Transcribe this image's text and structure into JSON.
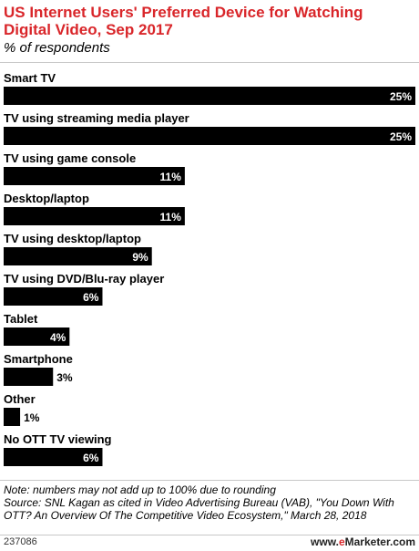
{
  "chart_data": {
    "type": "bar",
    "orientation": "horizontal",
    "title": "US Internet Users' Preferred Device for Watching Digital Video, Sep 2017",
    "subtitle": "% of respondents",
    "categories": [
      "Smart TV",
      "TV using streaming media player",
      "TV using game console",
      "Desktop/laptop",
      "TV using desktop/laptop",
      "TV using DVD/Blu-ray player",
      "Tablet",
      "Smartphone",
      "Other",
      "No OTT TV viewing"
    ],
    "values": [
      25,
      25,
      11,
      11,
      9,
      6,
      4,
      3,
      1,
      6
    ],
    "value_labels": [
      "25%",
      "25%",
      "11%",
      "11%",
      "9%",
      "6%",
      "4%",
      "3%",
      "1%",
      "6%"
    ],
    "xlim": [
      0,
      25
    ],
    "grid": false,
    "legend": "none",
    "bar_color": "#000000"
  },
  "notes": {
    "note": "Note: numbers may not add up to 100% due to rounding",
    "source": "Source: SNL Kagan as cited in Video Advertising Bureau (VAB), \"You Down With OTT? An Overview Of The Competitive Video Ecosystem,\" March 28, 2018"
  },
  "footer": {
    "chart_id": "237086",
    "brand_prefix": "www.",
    "brand_e": "e",
    "brand_suffix": "Marketer.com"
  },
  "colors": {
    "title": "#d9262a",
    "bar": "#000000",
    "label_inside": "#ffffff",
    "label_outside": "#000000"
  }
}
